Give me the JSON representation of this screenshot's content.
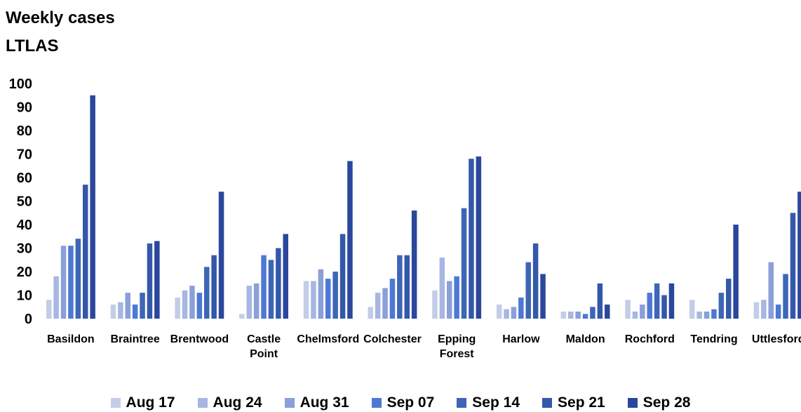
{
  "chart_data": {
    "type": "bar",
    "title": "Weekly cases",
    "subtitle": "LTLAS",
    "ylim": [
      0,
      100
    ],
    "yticks": [
      0,
      10,
      20,
      30,
      40,
      50,
      60,
      70,
      80,
      90,
      100
    ],
    "grid": false,
    "legend_position": "bottom",
    "categories": [
      "Basildon",
      "Braintree",
      "Brentwood",
      "Castle Point",
      "Chelmsford",
      "Colchester",
      "Epping Forest",
      "Harlow",
      "Maldon",
      "Rochford",
      "Tendring",
      "Uttlesford"
    ],
    "series": [
      {
        "name": "Aug 17",
        "color": "#c3cde6",
        "values": [
          8,
          6,
          9,
          2,
          16,
          5,
          12,
          6,
          3,
          8,
          8,
          7
        ]
      },
      {
        "name": "Aug 24",
        "color": "#a7b6e2",
        "values": [
          18,
          7,
          12,
          14,
          16,
          11,
          26,
          4,
          3,
          3,
          3,
          8
        ]
      },
      {
        "name": "Aug 31",
        "color": "#8b9fd8",
        "values": [
          31,
          11,
          14,
          15,
          21,
          13,
          16,
          5,
          3,
          6,
          3,
          24
        ]
      },
      {
        "name": "Sep 07",
        "color": "#4d79d4",
        "values": [
          31,
          6,
          11,
          27,
          17,
          17,
          18,
          9,
          2,
          11,
          4,
          6
        ]
      },
      {
        "name": "Sep 14",
        "color": "#3d66b6",
        "values": [
          34,
          11,
          22,
          25,
          20,
          27,
          47,
          24,
          5,
          15,
          11,
          19
        ]
      },
      {
        "name": "Sep 21",
        "color": "#3458a9",
        "values": [
          57,
          32,
          27,
          30,
          36,
          27,
          68,
          32,
          15,
          10,
          17,
          45
        ]
      },
      {
        "name": "Sep 28",
        "color": "#2a479c",
        "values": [
          95,
          33,
          54,
          36,
          67,
          46,
          69,
          19,
          6,
          15,
          40,
          54
        ]
      }
    ]
  }
}
